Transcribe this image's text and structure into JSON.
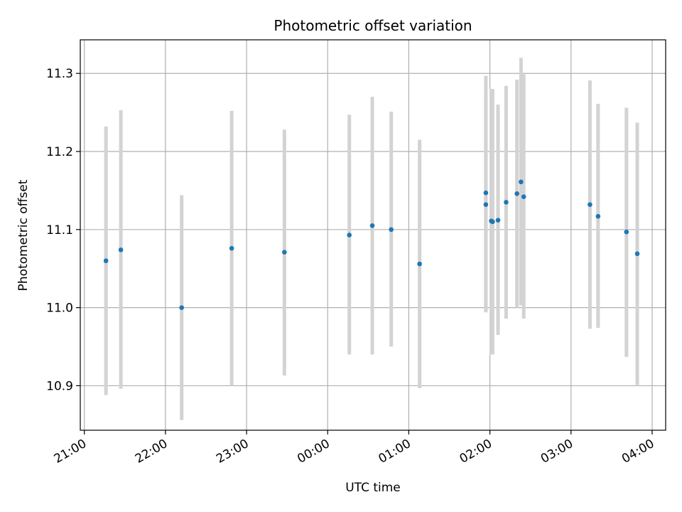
{
  "chart_data": {
    "type": "scatter",
    "title": "Photometric offset variation",
    "xlabel": "UTC time",
    "ylabel": "Photometric offset",
    "grid": true,
    "x_tick_labels": [
      "21:00",
      "22:00",
      "23:00",
      "00:00",
      "01:00",
      "02:00",
      "03:00",
      "04:00"
    ],
    "y_ticks": [
      "10.9",
      "11.0",
      "11.1",
      "11.2",
      "11.3"
    ],
    "xlim": [
      "20:57",
      "04:10"
    ],
    "ylim": [
      10.843,
      11.343
    ],
    "colors": {
      "point": "#1f77b4",
      "errorbar": "#d3d3d3",
      "grid": "#b0b0b0"
    },
    "series": [
      {
        "points": [
          {
            "x": "21:16",
            "y": 11.06,
            "ylow": 10.888,
            "yhigh": 11.232
          },
          {
            "x": "21:27",
            "y": 11.074,
            "ylow": 10.896,
            "yhigh": 11.253
          },
          {
            "x": "22:12",
            "y": 11.0,
            "ylow": 10.856,
            "yhigh": 11.144
          },
          {
            "x": "22:49",
            "y": 11.076,
            "ylow": 10.9,
            "yhigh": 11.252
          },
          {
            "x": "23:28",
            "y": 11.071,
            "ylow": 10.913,
            "yhigh": 11.228
          },
          {
            "x": "00:16",
            "y": 11.093,
            "ylow": 10.94,
            "yhigh": 11.247
          },
          {
            "x": "00:33",
            "y": 11.105,
            "ylow": 10.94,
            "yhigh": 11.27
          },
          {
            "x": "00:47",
            "y": 11.1,
            "ylow": 10.95,
            "yhigh": 11.251
          },
          {
            "x": "01:08",
            "y": 11.056,
            "ylow": 10.897,
            "yhigh": 11.215
          },
          {
            "x": "01:57",
            "y": 11.147,
            "ylow": 10.997,
            "yhigh": 11.297
          },
          {
            "x": "01:57",
            "y": 11.132,
            "ylow": 10.994,
            "yhigh": 11.27
          },
          {
            "x": "02:01",
            "y": 11.111,
            "ylow": 10.94,
            "yhigh": 11.28
          },
          {
            "x": "02:02",
            "y": 11.11,
            "ylow": 10.94,
            "yhigh": 11.28
          },
          {
            "x": "02:06",
            "y": 11.112,
            "ylow": 10.965,
            "yhigh": 11.26
          },
          {
            "x": "02:12",
            "y": 11.135,
            "ylow": 10.986,
            "yhigh": 11.284
          },
          {
            "x": "02:20",
            "y": 11.146,
            "ylow": 11.0,
            "yhigh": 11.292
          },
          {
            "x": "02:23",
            "y": 11.161,
            "ylow": 11.003,
            "yhigh": 11.32
          },
          {
            "x": "02:25",
            "y": 11.142,
            "ylow": 10.986,
            "yhigh": 11.299
          },
          {
            "x": "03:14",
            "y": 11.132,
            "ylow": 10.973,
            "yhigh": 11.291
          },
          {
            "x": "03:20",
            "y": 11.117,
            "ylow": 10.974,
            "yhigh": 11.261
          },
          {
            "x": "03:41",
            "y": 11.097,
            "ylow": 10.937,
            "yhigh": 11.256
          },
          {
            "x": "03:49",
            "y": 11.069,
            "ylow": 10.901,
            "yhigh": 11.237
          }
        ]
      }
    ]
  }
}
